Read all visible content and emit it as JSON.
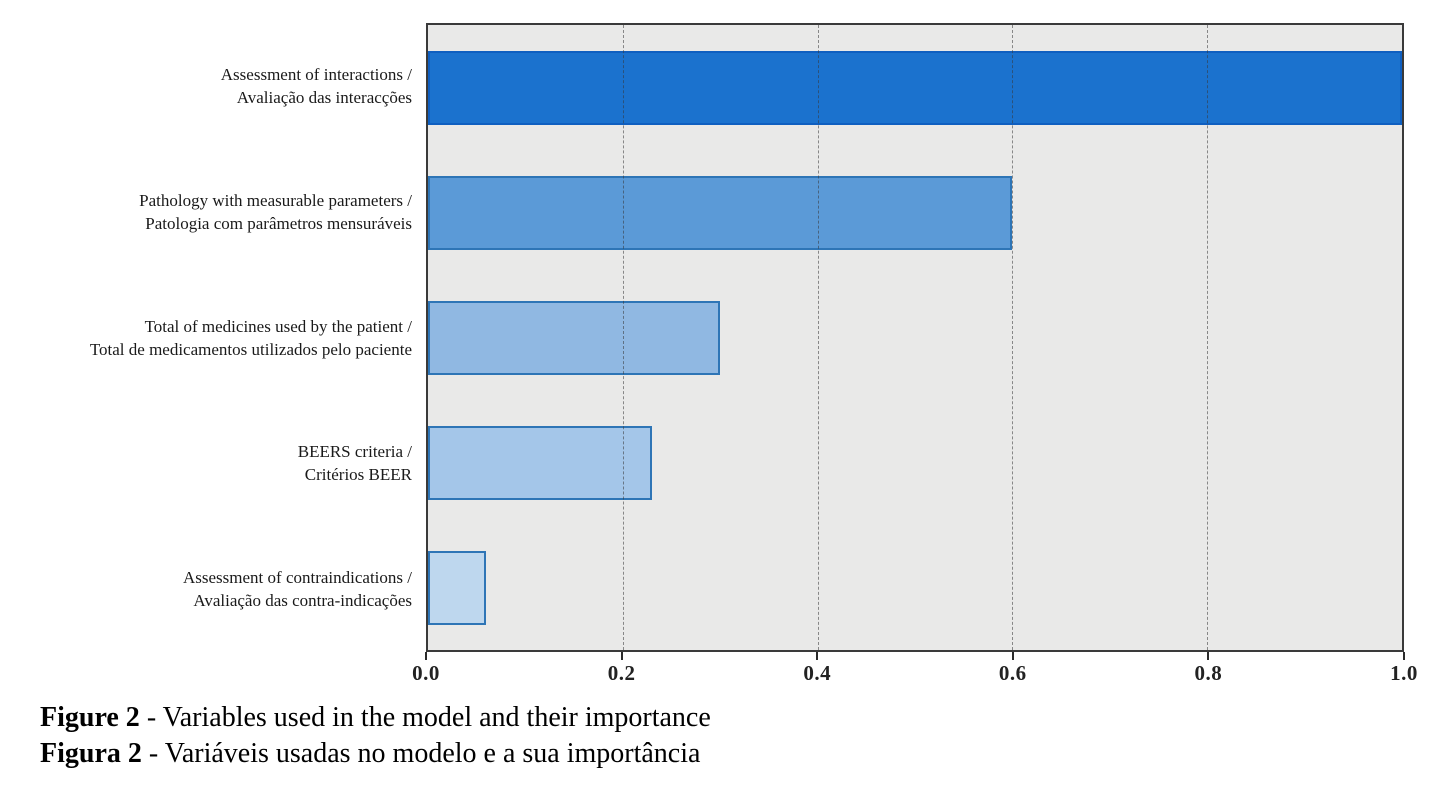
{
  "chart_data": {
    "type": "bar",
    "orientation": "horizontal",
    "title": "",
    "xlabel": "",
    "ylabel": "",
    "xlim": [
      0.0,
      1.0
    ],
    "x_ticks": [
      "0.0",
      "0.2",
      "0.4",
      "0.6",
      "0.8",
      "1.0"
    ],
    "grid": "vertical dashed gridlines at 0.2 intervals, drawn over bars",
    "plot_background": "#e9e9e8",
    "axis_color": "#3a3a3a",
    "categories": [
      {
        "label_en": "Assessment of interactions /",
        "label_pt": "Avaliação das interacções"
      },
      {
        "label_en": "Pathology with measurable parameters /",
        "label_pt": "Patologia com parâmetros mensuráveis"
      },
      {
        "label_en": "Total of medicines used by the patient /",
        "label_pt": "Total de medicamentos utilizados pelo paciente"
      },
      {
        "label_en": "BEERS criteria /",
        "label_pt": "Critérios BEER"
      },
      {
        "label_en": "Assessment of contraindications /",
        "label_pt": "Avaliação das contra-indicações"
      }
    ],
    "values": [
      1.0,
      0.6,
      0.3,
      0.23,
      0.06
    ],
    "bar_fill_colors": [
      "#1b72ce",
      "#5b9ad7",
      "#90b8e2",
      "#a4c6e9",
      "#bed7ee"
    ],
    "bar_border_colors": [
      "#0f5fc0",
      "#2e75b6",
      "#2e75b6",
      "#2e75b6",
      "#2e75b6"
    ]
  },
  "caption": {
    "en_label": "Figure 2",
    "en_text": " - Variables used in the model and their importance",
    "pt_label": "Figura 2",
    "pt_text": " - Variáveis usadas no modelo e a sua importância"
  }
}
